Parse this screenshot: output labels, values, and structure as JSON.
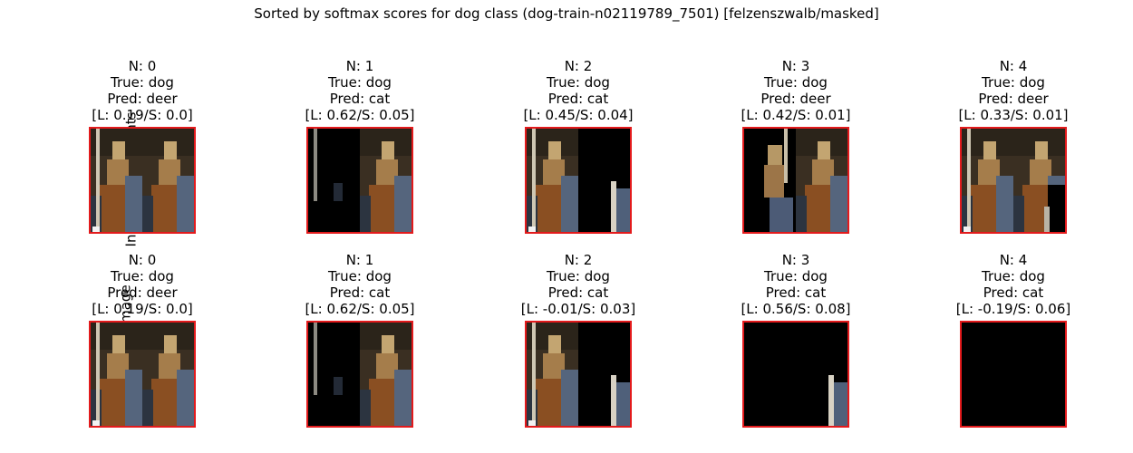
{
  "title": "Sorted by softmax scores for dog class (dog-train-n02119789_7501) [felzenszwalb/masked]",
  "colors": {
    "frame": "#e31a1c",
    "background": "#000000"
  },
  "chart_data": {
    "type": "image-grid",
    "rows": [
      {
        "label": "Indvidual Segments",
        "cells": [
          {
            "n": "N: 0",
            "true": "True: dog",
            "pred": "Pred: deer",
            "scores": "[L: 0.19/S: 0.0]",
            "left_pattern": "full-with-post",
            "right_pattern": "full"
          },
          {
            "n": "N: 1",
            "true": "True: dog",
            "pred": "Pred: cat",
            "scores": "[L: 0.62/S: 0.05]",
            "left_pattern": "dark-with-post",
            "right_pattern": "full"
          },
          {
            "n": "N: 2",
            "true": "True: dog",
            "pred": "Pred: cat",
            "scores": "[L: 0.45/S: 0.04]",
            "left_pattern": "full-with-post",
            "right_pattern": "dark-with-corner"
          },
          {
            "n": "N: 3",
            "true": "True: dog",
            "pred": "Pred: deer",
            "scores": "[L: 0.42/S: 0.01]",
            "left_pattern": "animal-only",
            "right_pattern": "full"
          },
          {
            "n": "N: 4",
            "true": "True: dog",
            "pred": "Pred: deer",
            "scores": "[L: 0.33/S: 0.01]",
            "left_pattern": "full-with-post",
            "right_pattern": "full-dark-corner"
          }
        ]
      },
      {
        "label": "Cumulative Image",
        "cells": [
          {
            "n": "N: 0",
            "true": "True: dog",
            "pred": "Pred: deer",
            "scores": "[L: 0.19/S: 0.0]",
            "left_pattern": "full-with-post",
            "right_pattern": "full"
          },
          {
            "n": "N: 1",
            "true": "True: dog",
            "pred": "Pred: cat",
            "scores": "[L: 0.62/S: 0.05]",
            "left_pattern": "dark-with-post",
            "right_pattern": "full"
          },
          {
            "n": "N: 2",
            "true": "True: dog",
            "pred": "Pred: cat",
            "scores": "[L: -0.01/S: 0.03]",
            "left_pattern": "full-with-post",
            "right_pattern": "dark-with-corner"
          },
          {
            "n": "N: 3",
            "true": "True: dog",
            "pred": "Pred: cat",
            "scores": "[L: 0.56/S: 0.08]",
            "left_pattern": "black",
            "right_pattern": "dark-with-corner"
          },
          {
            "n": "N: 4",
            "true": "True: dog",
            "pred": "Pred: cat",
            "scores": "[L: -0.19/S: 0.06]",
            "left_pattern": "black",
            "right_pattern": "black"
          }
        ]
      }
    ]
  }
}
